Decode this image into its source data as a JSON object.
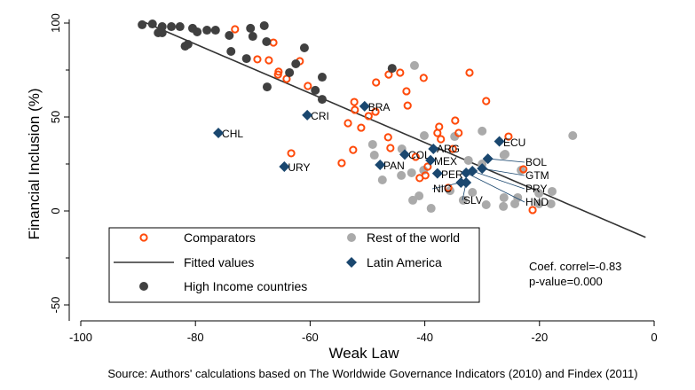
{
  "chart_data": {
    "type": "scatter",
    "xlabel": "Weak Law",
    "ylabel": "Financial Inclusion (%)",
    "xlim": [
      -100,
      0
    ],
    "ylim": [
      -50,
      100
    ],
    "xticks": [
      -100,
      -80,
      -60,
      -40,
      -20,
      0
    ],
    "yticks": [
      -50,
      0,
      50,
      100
    ],
    "yminor": [
      -25,
      25,
      75
    ],
    "grid": false,
    "legend_position": "bottom-left, inside",
    "source": "Source: Authors' calculations based on The Worldwide Governance Indicators (2010) and Findex (2011)",
    "annotation": [
      "Coef. correl=-0.83",
      "p-value=0.000"
    ],
    "colors": {
      "comparators": "#ff4a0a",
      "rest": "#aaaaaa",
      "high_income": "#404040",
      "latin_america": "#1a476f",
      "fitted": "#333333"
    },
    "fitted": {
      "name": "Fitted values",
      "slope": -1.31,
      "intercept": -16,
      "x_range": [
        -89,
        -1.5
      ]
    },
    "series": [
      {
        "name": "Comparators",
        "marker": "hollow-circle",
        "points": [
          [
            -73.1,
            96.7
          ],
          [
            -66.4,
            89.6
          ],
          [
            -69.2,
            80.7
          ],
          [
            -67.2,
            80.2
          ],
          [
            -61.8,
            79.7
          ],
          [
            -65.5,
            74.1
          ],
          [
            -65.6,
            72.6
          ],
          [
            -64.1,
            70.3
          ],
          [
            -60.4,
            66.5
          ],
          [
            -46.3,
            72.6
          ],
          [
            -44.3,
            73.6
          ],
          [
            -40.2,
            70.8
          ],
          [
            -32.2,
            73.6
          ],
          [
            -48.5,
            68.4
          ],
          [
            -43.2,
            63.7
          ],
          [
            -43.0,
            56.1
          ],
          [
            -52.3,
            58.0
          ],
          [
            -52.2,
            53.8
          ],
          [
            -48.6,
            52.8
          ],
          [
            -49.8,
            50.5
          ],
          [
            -53.4,
            46.7
          ],
          [
            -51.1,
            44.3
          ],
          [
            -46.4,
            39.2
          ],
          [
            -34.7,
            48.1
          ],
          [
            -37.5,
            44.8
          ],
          [
            -37.8,
            41.5
          ],
          [
            -34.1,
            41.5
          ],
          [
            -37.2,
            38.2
          ],
          [
            -29.3,
            58.5
          ],
          [
            -25.4,
            39.6
          ],
          [
            -35.1,
            33.0
          ],
          [
            -41.6,
            28.8
          ],
          [
            -39.5,
            23.6
          ],
          [
            -40.9,
            17.5
          ],
          [
            -39.9,
            18.9
          ],
          [
            -35.9,
            12.3
          ],
          [
            -22.8,
            22.2
          ],
          [
            -21.2,
            0.5
          ],
          [
            -46.0,
            33.5
          ],
          [
            -63.3,
            30.7
          ],
          [
            -52.5,
            32.5
          ],
          [
            -54.5,
            25.5
          ]
        ]
      },
      {
        "name": "Rest of the world",
        "marker": "filled-circle",
        "points": [
          [
            -41.8,
            77.4
          ],
          [
            -40.1,
            40.1
          ],
          [
            -34.8,
            39.6
          ],
          [
            -30.0,
            42.5
          ],
          [
            -14.2,
            40.1
          ],
          [
            -44.0,
            33.0
          ],
          [
            -26.2,
            29.7
          ],
          [
            -32.4,
            26.9
          ],
          [
            -30.0,
            25.0
          ],
          [
            -23.2,
            21.7
          ],
          [
            -44.1,
            18.9
          ],
          [
            -42.3,
            20.3
          ],
          [
            -40.2,
            21.7
          ],
          [
            -35.6,
            10.8
          ],
          [
            -31.7,
            9.9
          ],
          [
            -41.0,
            8.0
          ],
          [
            -42.1,
            5.7
          ],
          [
            -38.9,
            1.4
          ],
          [
            -33.3,
            5.7
          ],
          [
            -29.3,
            3.3
          ],
          [
            -26.2,
            7.1
          ],
          [
            -26.3,
            2.4
          ],
          [
            -23.8,
            7.1
          ],
          [
            -24.3,
            3.8
          ],
          [
            -20.1,
            9.4
          ],
          [
            -17.8,
            10.4
          ],
          [
            -20.1,
            3.8
          ],
          [
            -18.0,
            3.8
          ],
          [
            -49.1,
            35.4
          ],
          [
            -48.8,
            29.7
          ],
          [
            -47.4,
            16.5
          ],
          [
            -26.0,
            30.2
          ]
        ]
      },
      {
        "name": "High Income countries",
        "marker": "filled-circle",
        "points": [
          [
            -89.3,
            99.1
          ],
          [
            -87.5,
            99.5
          ],
          [
            -85.8,
            98.1
          ],
          [
            -85.8,
            94.8
          ],
          [
            -86.5,
            94.8
          ],
          [
            -84.2,
            98.1
          ],
          [
            -82.7,
            98.1
          ],
          [
            -80.5,
            97.2
          ],
          [
            -79.7,
            95.3
          ],
          [
            -78.0,
            96.2
          ],
          [
            -76.5,
            96.2
          ],
          [
            -81.3,
            88.7
          ],
          [
            -81.8,
            87.7
          ],
          [
            -74.1,
            93.4
          ],
          [
            -73.8,
            84.9
          ],
          [
            -70.4,
            97.2
          ],
          [
            -70.0,
            92.9
          ],
          [
            -68.0,
            98.6
          ],
          [
            -67.6,
            90.1
          ],
          [
            -71.1,
            81.1
          ],
          [
            -61.0,
            86.8
          ],
          [
            -62.5,
            78.3
          ],
          [
            -63.6,
            73.6
          ],
          [
            -67.5,
            66.0
          ],
          [
            -57.9,
            71.2
          ],
          [
            -59.1,
            64.2
          ],
          [
            -57.9,
            59.4
          ],
          [
            -45.7,
            75.9
          ]
        ]
      },
      {
        "name": "Latin America",
        "marker": "diamond",
        "points": [
          {
            "label": "CHL",
            "x": -76.0,
            "y": 41.5
          },
          {
            "label": "CRI",
            "x": -60.5,
            "y": 51.0
          },
          {
            "label": "URY",
            "x": -64.5,
            "y": 23.6
          },
          {
            "label": "BRA",
            "x": -50.5,
            "y": 55.7
          },
          {
            "label": "PAN",
            "x": -47.8,
            "y": 24.5
          },
          {
            "label": "COL",
            "x": -43.5,
            "y": 30.0
          },
          {
            "label": "ARG",
            "x": -38.5,
            "y": 33.0
          },
          {
            "label": "MEX",
            "x": -39.0,
            "y": 27.0
          },
          {
            "label": "PER",
            "x": -37.8,
            "y": 20.0
          },
          {
            "label": "HND",
            "x": -32.8,
            "y": 20.3
          },
          {
            "label": "PRY",
            "x": -31.7,
            "y": 21.2
          },
          {
            "label": "GTM",
            "x": -30.0,
            "y": 22.6
          },
          {
            "label": "NIC",
            "x": -33.7,
            "y": 15.1
          },
          {
            "label": "SLV",
            "x": -32.8,
            "y": 15.1
          },
          {
            "label": "BOL",
            "x": -29.0,
            "y": 27.8
          },
          {
            "label": "ECU",
            "x": -27.0,
            "y": 37.0
          }
        ]
      }
    ],
    "legend": [
      "Comparators",
      "Rest of the world",
      "Fitted values",
      "Latin America",
      "High Income countries"
    ]
  }
}
